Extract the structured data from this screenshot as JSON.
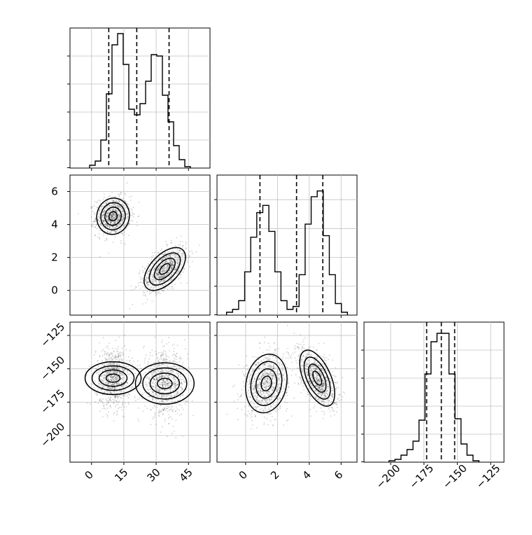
{
  "chart_data": [
    {
      "type": "histogram",
      "panel": "diag-0",
      "xlim": [
        -10,
        55
      ],
      "bin_width": 2.6,
      "counts": [
        0.02,
        0.05,
        0.2,
        0.53,
        0.88,
        0.96,
        0.74,
        0.42,
        0.38,
        0.46,
        0.62,
        0.81,
        0.8,
        0.52,
        0.33,
        0.16,
        0.06,
        0.01
      ],
      "quantiles": [
        8.0,
        21.0,
        36.0
      ],
      "grid": true
    },
    {
      "type": "histogram",
      "panel": "diag-1",
      "xlim": [
        -1.8,
        7.0
      ],
      "bin_width": 0.38,
      "counts": [
        0.02,
        0.04,
        0.1,
        0.3,
        0.54,
        0.71,
        0.76,
        0.58,
        0.3,
        0.1,
        0.04,
        0.06,
        0.28,
        0.63,
        0.82,
        0.86,
        0.55,
        0.28,
        0.08,
        0.02
      ],
      "quantiles": [
        0.9,
        3.2,
        4.85
      ],
      "ylim": [
        0,
        0.97
      ],
      "grid": true
    },
    {
      "type": "histogram",
      "panel": "diag-2",
      "xlim": [
        -220,
        -115
      ],
      "bin_width": 4.5,
      "counts": [
        0.01,
        0.02,
        0.05,
        0.09,
        0.15,
        0.3,
        0.63,
        0.86,
        0.92,
        0.92,
        0.63,
        0.31,
        0.13,
        0.05,
        0.01
      ],
      "quantiles": [
        -173,
        -162,
        -152
      ],
      "ylim": [
        0,
        1.0
      ],
      "x_ticks": [
        -200,
        -175,
        -150,
        -125
      ],
      "grid": true
    },
    {
      "type": "scatter-contour",
      "panel": "pair-1-0",
      "xlim": [
        -10,
        55
      ],
      "ylim": [
        -1.5,
        7.0
      ],
      "y_ticks": [
        0,
        2,
        4,
        6
      ],
      "modes": [
        {
          "cx": 10,
          "cy": 4.5,
          "sx": 3.8,
          "sy": 0.55,
          "rho": 0.05,
          "weight": 0.5
        },
        {
          "cx": 34,
          "cy": 1.3,
          "sx": 4.8,
          "sy": 0.65,
          "rho": 0.55,
          "weight": 0.5
        }
      ],
      "grid": true
    },
    {
      "type": "scatter-contour",
      "panel": "pair-2-0",
      "xlim": [
        -10,
        55
      ],
      "ylim": [
        -220,
        -115
      ],
      "x_ticks": [
        0,
        15,
        30,
        45
      ],
      "y_ticks": [
        -125,
        -150,
        -175,
        -200
      ],
      "modes": [
        {
          "cx": 10,
          "cy": -157,
          "sx": 3.8,
          "sy": 10.5,
          "rho": 0.0,
          "weight": 0.5
        },
        {
          "cx": 34,
          "cy": -161,
          "sx": 4.8,
          "sy": 11.0,
          "rho": 0.0,
          "weight": 0.5
        }
      ],
      "grid": true
    },
    {
      "type": "scatter-contour",
      "panel": "pair-2-1",
      "xlim": [
        -1.8,
        7.0
      ],
      "ylim": [
        -220,
        -115
      ],
      "x_ticks": [
        0,
        2,
        4,
        6
      ],
      "modes": [
        {
          "cx": 1.3,
          "cy": -161,
          "sx": 0.65,
          "sy": 11.0,
          "rho": 0.15,
          "weight": 0.5
        },
        {
          "cx": 4.5,
          "cy": -157,
          "sx": 0.55,
          "sy": 10.5,
          "rho": -0.55,
          "weight": 0.5
        }
      ],
      "grid": true
    }
  ]
}
